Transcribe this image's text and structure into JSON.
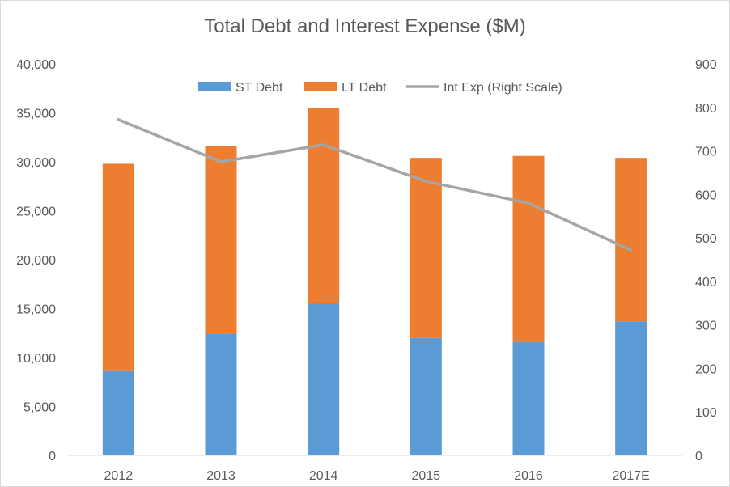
{
  "chart_data": {
    "type": "bar",
    "title": "Total Debt and Interest Expense ($M)",
    "categories": [
      "2012",
      "2013",
      "2014",
      "2015",
      "2016",
      "2017E"
    ],
    "stacked": true,
    "series": [
      {
        "name": "ST Debt",
        "kind": "bar",
        "axis": "left",
        "color": "#5b9bd5",
        "values": [
          8700,
          12400,
          15600,
          12000,
          11600,
          13700
        ]
      },
      {
        "name": "LT Debt",
        "kind": "bar",
        "axis": "left",
        "color": "#ed7d31",
        "values": [
          21100,
          19200,
          19900,
          18400,
          19000,
          16700
        ]
      },
      {
        "name": "Int Exp (Right Scale)",
        "kind": "line",
        "axis": "right",
        "color": "#a5a5a5",
        "values": [
          772,
          675,
          714,
          630,
          580,
          472
        ]
      }
    ],
    "ylim": [
      0,
      40000
    ],
    "y2lim": [
      0,
      900
    ],
    "yticks": [
      "0",
      "5,000",
      "10,000",
      "15,000",
      "20,000",
      "25,000",
      "30,000",
      "35,000",
      "40,000"
    ],
    "ytick_values": [
      0,
      5000,
      10000,
      15000,
      20000,
      25000,
      30000,
      35000,
      40000
    ],
    "y2ticks": [
      "0",
      "100",
      "200",
      "300",
      "400",
      "500",
      "600",
      "700",
      "800",
      "900"
    ],
    "y2tick_values": [
      0,
      100,
      200,
      300,
      400,
      500,
      600,
      700,
      800,
      900
    ],
    "grid": false,
    "legend_position": "top"
  }
}
